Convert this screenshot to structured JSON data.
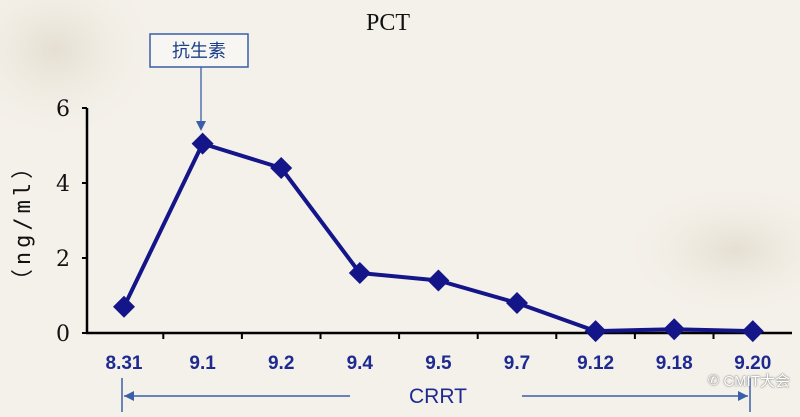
{
  "chart_data": {
    "type": "line",
    "title": "PCT",
    "ylabel": "（ng/ml）",
    "xlabel": "",
    "categories": [
      "8.31",
      "9.1",
      "9.2",
      "9.4",
      "9.5",
      "9.7",
      "9.12",
      "9.18",
      "9.20"
    ],
    "series": [
      {
        "values": [
          0.7,
          5.05,
          4.4,
          1.6,
          1.4,
          0.8,
          0.05,
          0.1,
          0.05
        ]
      }
    ],
    "ylim": [
      0,
      6
    ],
    "yticks": [
      0,
      2,
      4,
      6
    ],
    "grid": false,
    "annotations": {
      "callout": {
        "text": "抗生素",
        "category": "9.1"
      },
      "span": {
        "text": "CRRT",
        "from": "8.31",
        "to": "9.20"
      }
    },
    "colors": {
      "series": "#15158a",
      "axis": "#000000",
      "tick_label": "#1f2a90",
      "annotation": "#3a5fa8"
    }
  },
  "watermark": {
    "text": "CMIT大会",
    "icon": "wechat-icon"
  }
}
